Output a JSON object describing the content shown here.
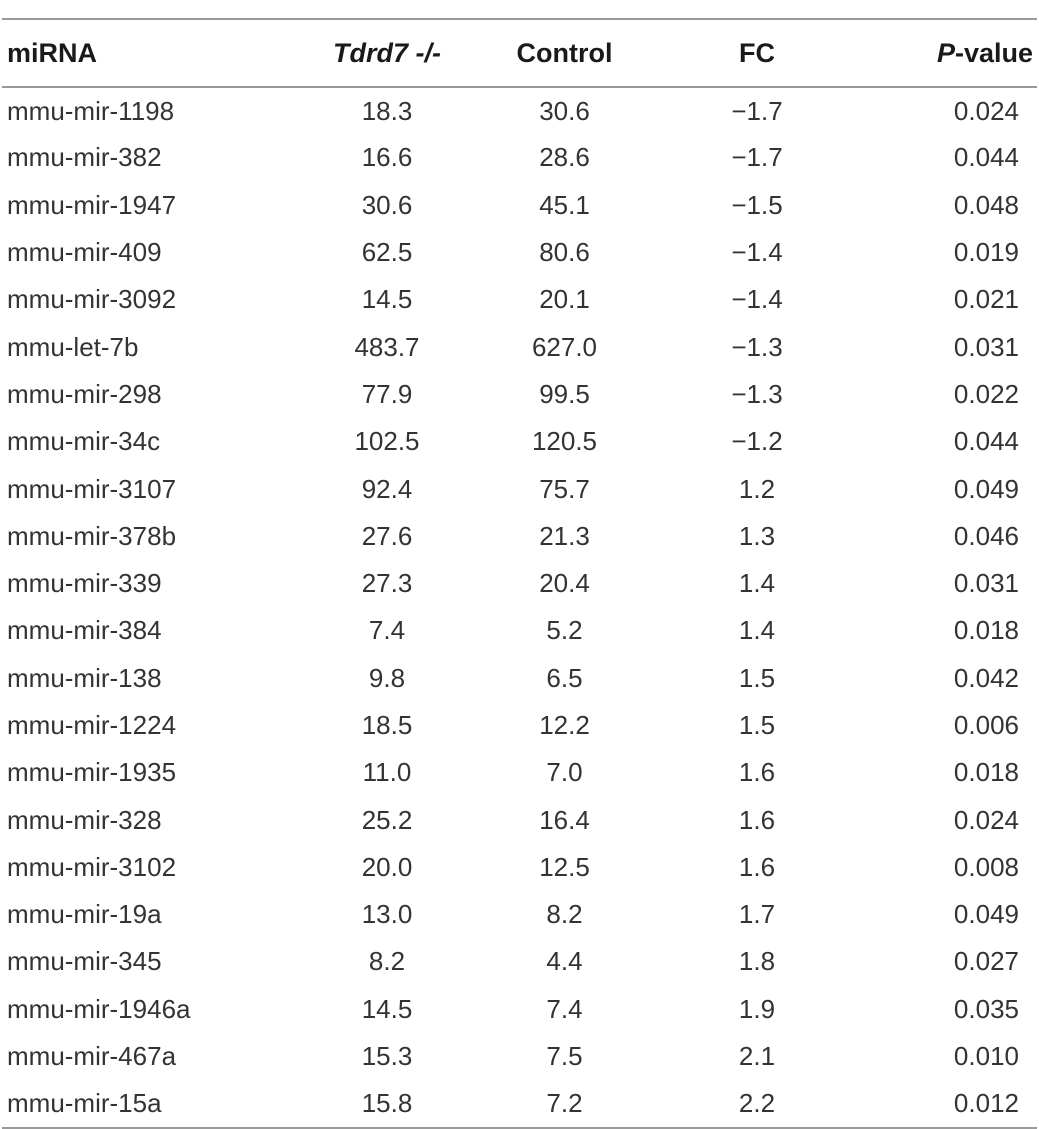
{
  "table": {
    "headers": {
      "mirna": "miRNA",
      "tdrd_italic": "Tdrd7",
      "tdrd_suffix": " -/-",
      "control": "Control",
      "fc": "FC",
      "pval_italic": "P",
      "pval_suffix": "-value"
    },
    "rows": [
      {
        "mirna": "mmu-mir-1198",
        "tdrd": "18.3",
        "control": "30.6",
        "fc": "−1.7",
        "pval": "0.024"
      },
      {
        "mirna": "mmu-mir-382",
        "tdrd": "16.6",
        "control": "28.6",
        "fc": "−1.7",
        "pval": "0.044"
      },
      {
        "mirna": "mmu-mir-1947",
        "tdrd": "30.6",
        "control": "45.1",
        "fc": "−1.5",
        "pval": "0.048"
      },
      {
        "mirna": "mmu-mir-409",
        "tdrd": "62.5",
        "control": "80.6",
        "fc": "−1.4",
        "pval": "0.019"
      },
      {
        "mirna": "mmu-mir-3092",
        "tdrd": "14.5",
        "control": "20.1",
        "fc": "−1.4",
        "pval": "0.021"
      },
      {
        "mirna": "mmu-let-7b",
        "tdrd": "483.7",
        "control": "627.0",
        "fc": "−1.3",
        "pval": "0.031"
      },
      {
        "mirna": "mmu-mir-298",
        "tdrd": "77.9",
        "control": "99.5",
        "fc": "−1.3",
        "pval": "0.022"
      },
      {
        "mirna": "mmu-mir-34c",
        "tdrd": "102.5",
        "control": "120.5",
        "fc": "−1.2",
        "pval": "0.044"
      },
      {
        "mirna": "mmu-mir-3107",
        "tdrd": "92.4",
        "control": "75.7",
        "fc": "1.2",
        "pval": "0.049"
      },
      {
        "mirna": "mmu-mir-378b",
        "tdrd": "27.6",
        "control": "21.3",
        "fc": "1.3",
        "pval": "0.046"
      },
      {
        "mirna": "mmu-mir-339",
        "tdrd": "27.3",
        "control": "20.4",
        "fc": "1.4",
        "pval": "0.031"
      },
      {
        "mirna": "mmu-mir-384",
        "tdrd": "7.4",
        "control": "5.2",
        "fc": "1.4",
        "pval": "0.018"
      },
      {
        "mirna": "mmu-mir-138",
        "tdrd": "9.8",
        "control": "6.5",
        "fc": "1.5",
        "pval": "0.042"
      },
      {
        "mirna": "mmu-mir-1224",
        "tdrd": "18.5",
        "control": "12.2",
        "fc": "1.5",
        "pval": "0.006"
      },
      {
        "mirna": "mmu-mir-1935",
        "tdrd": "11.0",
        "control": "7.0",
        "fc": "1.6",
        "pval": "0.018"
      },
      {
        "mirna": "mmu-mir-328",
        "tdrd": "25.2",
        "control": "16.4",
        "fc": "1.6",
        "pval": "0.024"
      },
      {
        "mirna": "mmu-mir-3102",
        "tdrd": "20.0",
        "control": "12.5",
        "fc": "1.6",
        "pval": "0.008"
      },
      {
        "mirna": "mmu-mir-19a",
        "tdrd": "13.0",
        "control": "8.2",
        "fc": "1.7",
        "pval": "0.049"
      },
      {
        "mirna": "mmu-mir-345",
        "tdrd": "8.2",
        "control": "4.4",
        "fc": "1.8",
        "pval": "0.027"
      },
      {
        "mirna": "mmu-mir-1946a",
        "tdrd": "14.5",
        "control": "7.4",
        "fc": "1.9",
        "pval": "0.035"
      },
      {
        "mirna": "mmu-mir-467a",
        "tdrd": "15.3",
        "control": "7.5",
        "fc": "2.1",
        "pval": "0.010"
      },
      {
        "mirna": "mmu-mir-15a",
        "tdrd": "15.8",
        "control": "7.2",
        "fc": "2.2",
        "pval": "0.012"
      }
    ]
  }
}
